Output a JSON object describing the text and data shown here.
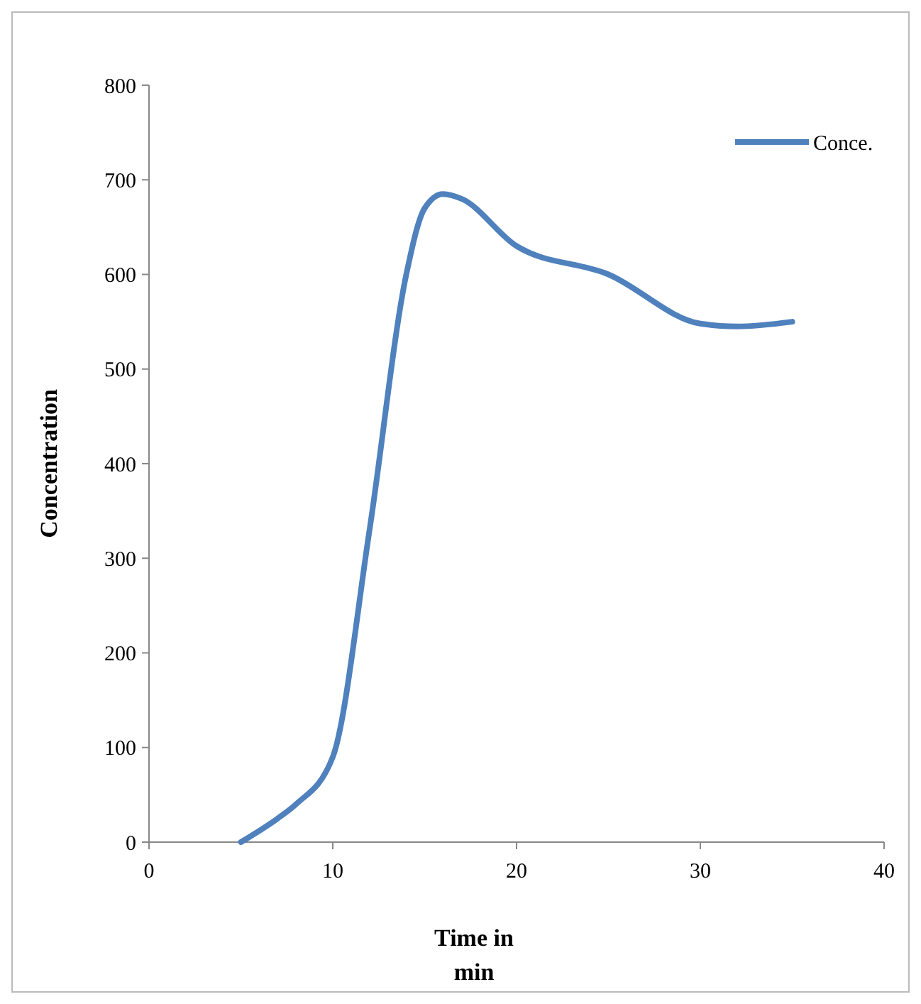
{
  "chart_data": {
    "type": "line",
    "xlabel": "Time in min",
    "ylabel": "Concentration",
    "x": [
      5,
      7,
      8,
      10,
      12,
      14,
      15,
      16,
      17,
      20,
      25,
      30,
      32,
      35
    ],
    "series": [
      {
        "name": "Conce.",
        "color": "#4f81bd",
        "values": [
          0,
          25,
          40,
          90,
          330,
          600,
          670,
          685,
          680,
          630,
          600,
          548,
          545,
          550
        ]
      }
    ],
    "xlim": [
      0,
      40
    ],
    "xticks": [
      0,
      10,
      20,
      30,
      40
    ],
    "ylim": [
      0,
      800
    ],
    "yticks": [
      0,
      100,
      200,
      300,
      400,
      500,
      600,
      700,
      800
    ],
    "grid": false,
    "legend": "top right",
    "marker": "none",
    "line_style": "solid"
  }
}
